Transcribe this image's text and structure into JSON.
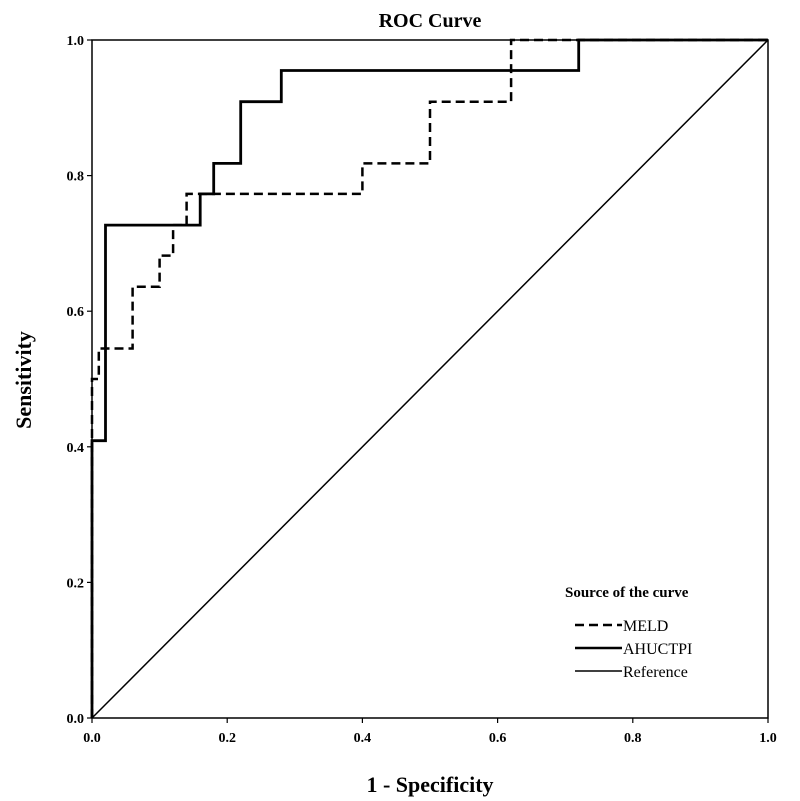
{
  "chart_data": {
    "type": "line",
    "title": "ROC Curve",
    "xlabel": "1 - Specificity",
    "ylabel": "Sensitivity",
    "xlim": [
      0,
      1
    ],
    "ylim": [
      0,
      1
    ],
    "xticks": [
      "0.0",
      "0.2",
      "0.4",
      "0.6",
      "0.8",
      "1.0"
    ],
    "yticks": [
      "0.0",
      "0.2",
      "0.4",
      "0.6",
      "0.8",
      "1.0"
    ],
    "grid": false,
    "legend": {
      "title": "Source of the curve",
      "position": "bottom-right"
    },
    "series": [
      {
        "name": "MELD",
        "style": "dashed",
        "color": "#000000",
        "points": [
          [
            0,
            0
          ],
          [
            0,
            0.5
          ],
          [
            0.01,
            0.5
          ],
          [
            0.01,
            0.545
          ],
          [
            0.06,
            0.545
          ],
          [
            0.06,
            0.636
          ],
          [
            0.1,
            0.636
          ],
          [
            0.1,
            0.682
          ],
          [
            0.12,
            0.682
          ],
          [
            0.12,
            0.727
          ],
          [
            0.14,
            0.727
          ],
          [
            0.14,
            0.773
          ],
          [
            0.4,
            0.773
          ],
          [
            0.4,
            0.818
          ],
          [
            0.5,
            0.818
          ],
          [
            0.5,
            0.909
          ],
          [
            0.62,
            0.909
          ],
          [
            0.62,
            1.0
          ],
          [
            1.0,
            1.0
          ]
        ]
      },
      {
        "name": "AHUCTPI",
        "style": "solid",
        "color": "#000000",
        "points": [
          [
            0,
            0
          ],
          [
            0,
            0.409
          ],
          [
            0.02,
            0.409
          ],
          [
            0.02,
            0.727
          ],
          [
            0.16,
            0.727
          ],
          [
            0.16,
            0.773
          ],
          [
            0.18,
            0.773
          ],
          [
            0.18,
            0.818
          ],
          [
            0.22,
            0.818
          ],
          [
            0.22,
            0.909
          ],
          [
            0.28,
            0.909
          ],
          [
            0.28,
            0.955
          ],
          [
            0.72,
            0.955
          ],
          [
            0.72,
            1.0
          ],
          [
            1.0,
            1.0
          ]
        ]
      },
      {
        "name": "Reference",
        "style": "solid-thin",
        "color": "#000000",
        "points": [
          [
            0,
            0
          ],
          [
            1,
            1
          ]
        ]
      }
    ]
  }
}
